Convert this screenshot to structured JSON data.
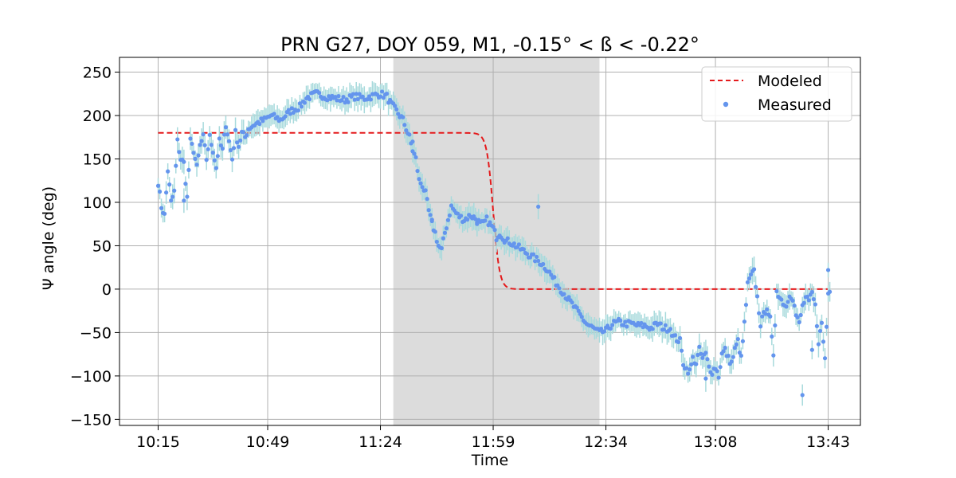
{
  "chart_data": {
    "type": "scatter",
    "title": "PRN G27, DOY 059, M1, -0.15° < ß < -0.22°",
    "xlabel": "Time",
    "ylabel": "Ψ angle (deg)",
    "x_range_minutes": [
      605,
      833
    ],
    "xlim": [
      "10:03",
      "13:53"
    ],
    "ylim": [
      -157,
      267
    ],
    "grid": true,
    "legend_position": "top-right",
    "x_ticks": [
      {
        "label": "10:15",
        "minutes": 615
      },
      {
        "label": "10:49",
        "minutes": 649
      },
      {
        "label": "11:24",
        "minutes": 684
      },
      {
        "label": "11:59",
        "minutes": 719
      },
      {
        "label": "12:34",
        "minutes": 754
      },
      {
        "label": "13:08",
        "minutes": 788
      },
      {
        "label": "13:43",
        "minutes": 823
      }
    ],
    "y_ticks": [
      250,
      200,
      150,
      100,
      50,
      0,
      -50,
      -100,
      -150
    ],
    "y_tick_labels": [
      "250",
      "200",
      "150",
      "100",
      "50",
      "0",
      "−50",
      "−100",
      "−150"
    ],
    "shaded_region": {
      "x_start": "11:28",
      "x_end": "12:32",
      "color": "#dcdcdc"
    },
    "colors": {
      "modeled": "#e41a1c",
      "measured": "#6495ed",
      "errorbar": "#a8dadc"
    },
    "series": [
      {
        "name": "Modeled",
        "style": "dashed-line",
        "model": {
          "x_start": "10:15",
          "x_end": "13:43",
          "y_high": 180,
          "y_low": 0,
          "transition_center": "11:59",
          "transition_width_minutes": 1.0
        }
      },
      {
        "name": "Measured",
        "style": "points-with-errorbars",
        "errorbar_half_height": 12,
        "anchors": [
          [
            615,
            123
          ],
          [
            616,
            95
          ],
          [
            617,
            85
          ],
          [
            618,
            137
          ],
          [
            619,
            100
          ],
          [
            620,
            112
          ],
          [
            621,
            170
          ],
          [
            622,
            150
          ],
          [
            623,
            145
          ],
          [
            624,
            105
          ],
          [
            625,
            170
          ],
          [
            626,
            160
          ],
          [
            627,
            140
          ],
          [
            628,
            165
          ],
          [
            629,
            175
          ],
          [
            630,
            150
          ],
          [
            631,
            175
          ],
          [
            632,
            160
          ],
          [
            633,
            140
          ],
          [
            634,
            170
          ],
          [
            635,
            160
          ],
          [
            636,
            190
          ],
          [
            637,
            170
          ],
          [
            638,
            150
          ],
          [
            639,
            180
          ],
          [
            640,
            165
          ],
          [
            641,
            180
          ],
          [
            642,
            175
          ],
          [
            643,
            185
          ],
          [
            645,
            190
          ],
          [
            648,
            195
          ],
          [
            650,
            200
          ],
          [
            653,
            195
          ],
          [
            656,
            205
          ],
          [
            659,
            210
          ],
          [
            661,
            220
          ],
          [
            664,
            225
          ],
          [
            667,
            222
          ],
          [
            670,
            220
          ],
          [
            673,
            218
          ],
          [
            676,
            222
          ],
          [
            679,
            220
          ],
          [
            682,
            223
          ],
          [
            684,
            225
          ],
          [
            686,
            222
          ],
          [
            687,
            215
          ],
          [
            688,
            210
          ],
          [
            689,
            205
          ],
          [
            690,
            200
          ],
          [
            691,
            195
          ],
          [
            692,
            185
          ],
          [
            693,
            175
          ],
          [
            694,
            160
          ],
          [
            695,
            150
          ],
          [
            696,
            125
          ],
          [
            697,
            120
          ],
          [
            698,
            110
          ],
          [
            699,
            90
          ],
          [
            700,
            75
          ],
          [
            701,
            65
          ],
          [
            702,
            50
          ],
          [
            703,
            45
          ],
          [
            704,
            65
          ],
          [
            705,
            80
          ],
          [
            706,
            95
          ],
          [
            707,
            90
          ],
          [
            708,
            85
          ],
          [
            710,
            80
          ],
          [
            712,
            85
          ],
          [
            714,
            80
          ],
          [
            715,
            75
          ],
          [
            716,
            75
          ],
          [
            717,
            80
          ],
          [
            718,
            75
          ],
          [
            719,
            70
          ],
          [
            720,
            60
          ],
          [
            721,
            65
          ],
          [
            722,
            60
          ],
          [
            723,
            55
          ],
          [
            724,
            55
          ],
          [
            726,
            50
          ],
          [
            728,
            45
          ],
          [
            730,
            40
          ],
          [
            732,
            35
          ],
          [
            734,
            30
          ],
          [
            736,
            22
          ],
          [
            738,
            10
          ],
          [
            740,
            0
          ],
          [
            742,
            -10
          ],
          [
            744,
            -20
          ],
          [
            746,
            -30
          ],
          [
            748,
            -40
          ],
          [
            750,
            -45
          ],
          [
            752,
            -50
          ],
          [
            754,
            -48
          ],
          [
            756,
            -40
          ],
          [
            758,
            -38
          ],
          [
            760,
            -40
          ],
          [
            762,
            -40
          ],
          [
            764,
            -42
          ],
          [
            766,
            -42
          ],
          [
            768,
            -45
          ],
          [
            770,
            -40
          ],
          [
            772,
            -45
          ],
          [
            774,
            -45
          ],
          [
            775,
            -55
          ],
          [
            777,
            -60
          ],
          [
            778,
            -85
          ],
          [
            779,
            -92
          ],
          [
            780,
            -95
          ],
          [
            781,
            -80
          ],
          [
            782,
            -85
          ],
          [
            783,
            -70
          ],
          [
            784,
            -80
          ],
          [
            785,
            -75
          ],
          [
            786,
            -90
          ],
          [
            787,
            -95
          ],
          [
            788,
            -90
          ],
          [
            789,
            -100
          ],
          [
            790,
            -75
          ],
          [
            791,
            -70
          ],
          [
            792,
            -80
          ],
          [
            793,
            -85
          ],
          [
            794,
            -70
          ],
          [
            795,
            -60
          ],
          [
            796,
            -80
          ],
          [
            797,
            -40
          ],
          [
            798,
            5
          ],
          [
            799,
            15
          ],
          [
            800,
            20
          ],
          [
            801,
            -10
          ],
          [
            802,
            -40
          ],
          [
            803,
            -30
          ],
          [
            804,
            -20
          ],
          [
            805,
            -35
          ],
          [
            806,
            -80
          ],
          [
            807,
            0
          ],
          [
            808,
            -10
          ],
          [
            809,
            -15
          ],
          [
            810,
            -20
          ],
          [
            811,
            -5
          ],
          [
            812,
            -10
          ],
          [
            813,
            -30
          ],
          [
            814,
            -40
          ],
          [
            815,
            -20
          ],
          [
            816,
            -10
          ],
          [
            817,
            -15
          ],
          [
            818,
            -5
          ],
          [
            819,
            -20
          ],
          [
            820,
            -60
          ],
          [
            821,
            -40
          ],
          [
            822,
            -80
          ],
          [
            823,
            -5
          ],
          [
            824,
            5
          ]
        ],
        "outliers": [
          [
            623,
            102
          ],
          [
            694,
            170
          ],
          [
            700,
            80
          ],
          [
            714,
            75
          ],
          [
            733,
            95
          ],
          [
            815,
            -122
          ],
          [
            823,
            22
          ],
          [
            818,
            -70
          ],
          [
            785,
            -103
          ]
        ]
      }
    ],
    "legend": [
      "Modeled",
      "Measured"
    ]
  }
}
